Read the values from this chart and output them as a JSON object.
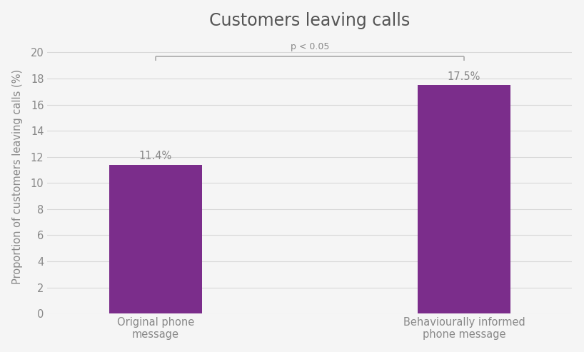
{
  "title": "Customers leaving calls",
  "categories": [
    "Original phone\nmessage",
    "Behaviourally informed\nphone message"
  ],
  "values": [
    11.4,
    17.5
  ],
  "bar_color": "#7B2D8B",
  "bar_width": 0.3,
  "ylabel": "Proportion of customers leaving calls (%)",
  "ylim": [
    0,
    21
  ],
  "yticks": [
    0,
    2,
    4,
    6,
    8,
    10,
    12,
    14,
    16,
    18,
    20
  ],
  "value_labels": [
    "11.4%",
    "17.5%"
  ],
  "sig_label": "p < 0.05",
  "sig_y": 20.1,
  "sig_bracket_y": 19.7,
  "sig_bracket_tick": 0.35,
  "background_color": "#f5f5f5",
  "grid_color": "#d8d8d8",
  "text_color": "#888888",
  "title_color": "#555555",
  "title_fontsize": 17,
  "label_fontsize": 10.5,
  "tick_fontsize": 10.5,
  "value_label_fontsize": 10.5,
  "sig_fontsize": 9,
  "bracket_color": "#aaaaaa",
  "bracket_lw": 1.2,
  "x_positions": [
    0.5,
    1.5
  ],
  "xlim": [
    0.15,
    1.85
  ]
}
